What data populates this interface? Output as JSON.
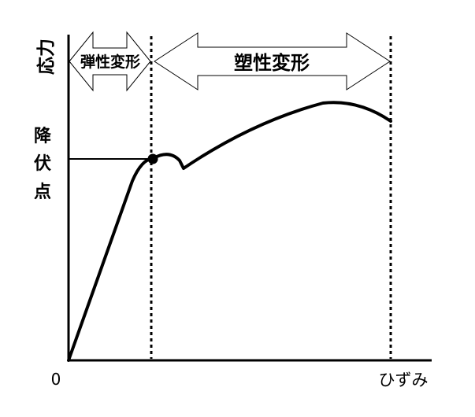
{
  "labels": {
    "y_axis": "応力",
    "x_axis": "ひずみ",
    "origin": "0",
    "yield_point": [
      "降",
      "伏",
      "点"
    ],
    "elastic_region": "弾性変形",
    "plastic_region": "塑性変形"
  },
  "colors": {
    "line": "#000000",
    "background": "#ffffff"
  }
}
